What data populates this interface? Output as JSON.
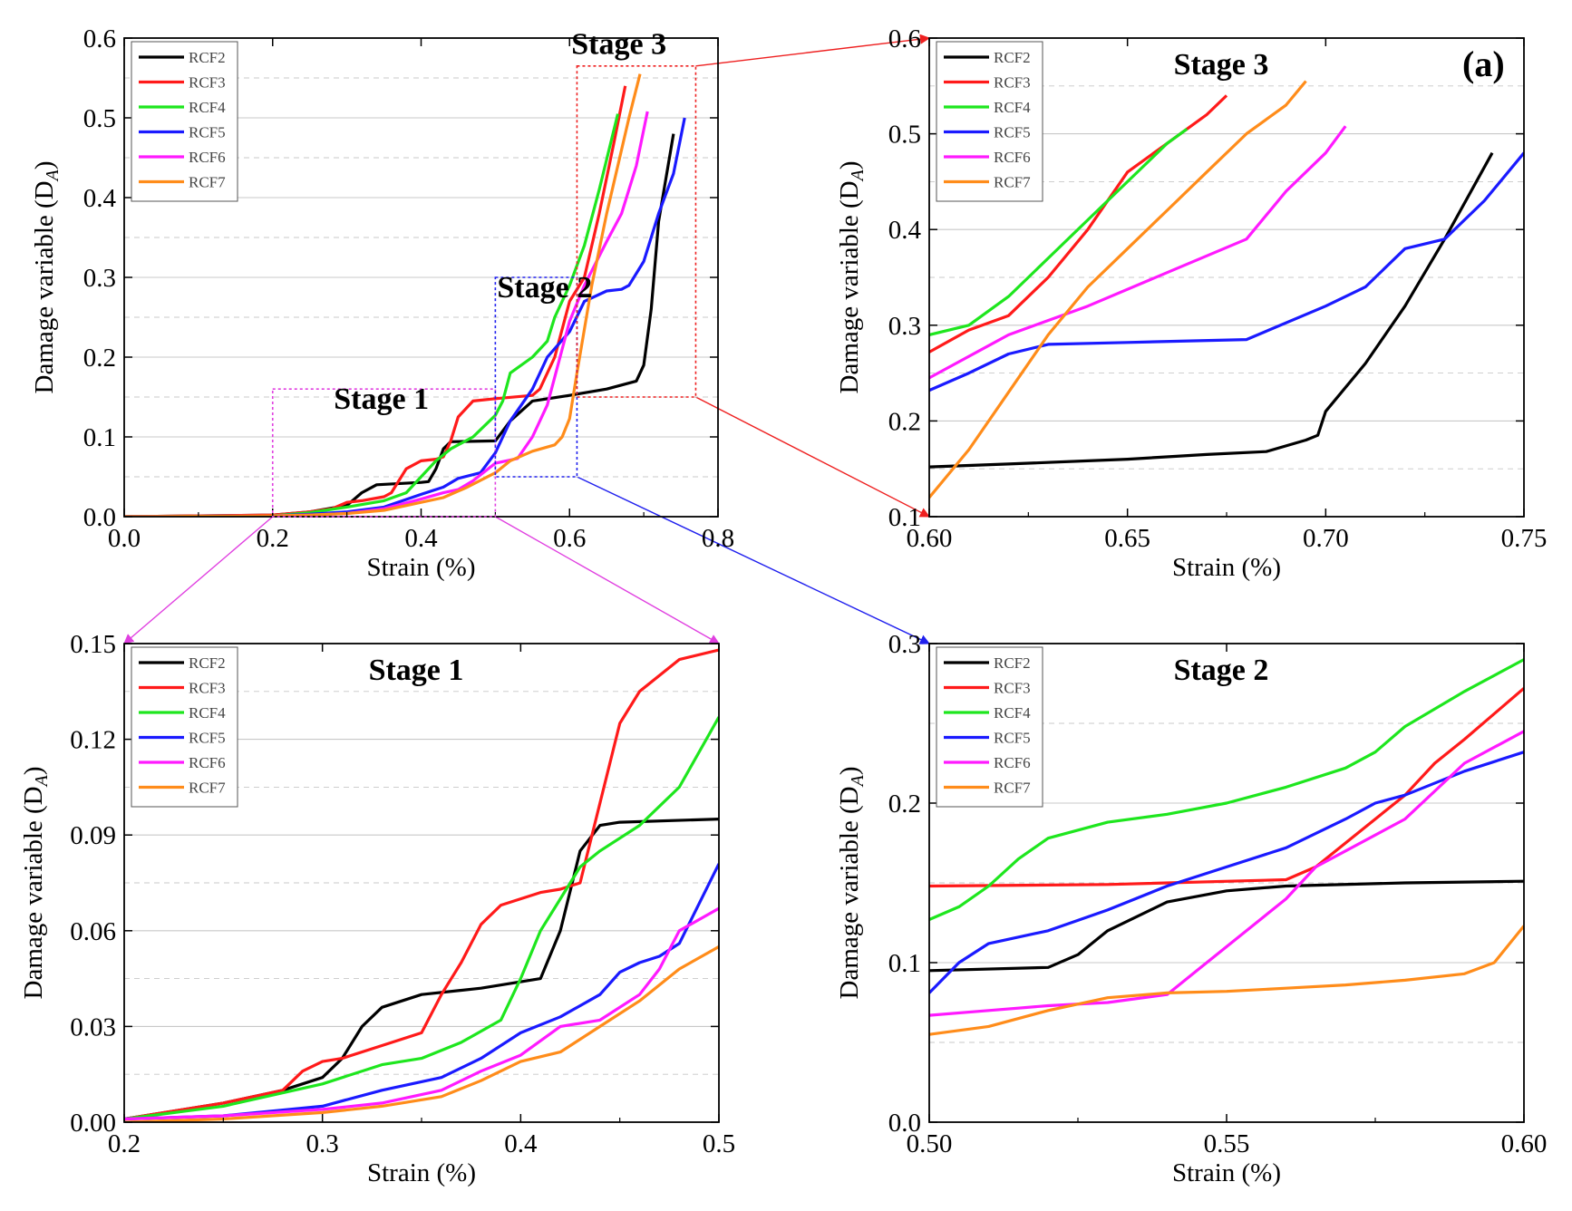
{
  "figure": {
    "panel_tag": "(a)",
    "colors": {
      "RCF2": "#000000",
      "RCF3": "#ff1a1a",
      "RCF4": "#1ee61e",
      "RCF5": "#1a1aff",
      "RCF6": "#ff1aff",
      "RCF7": "#ff8c1a"
    },
    "box_colors": {
      "stage1": "#e040e0",
      "stage2": "#2020ee",
      "stage3": "#ee2020"
    }
  },
  "chart_data": [
    {
      "id": "main",
      "type": "line",
      "title": "",
      "xlabel": "Strain (%)",
      "ylabel": "Damage variable (D",
      "ylabel_sub": "A",
      "ylabel_end": ")",
      "xlim": [
        0,
        0.8
      ],
      "ylim": [
        0,
        0.6
      ],
      "xticks": [
        0.0,
        0.2,
        0.4,
        0.6,
        0.8
      ],
      "xtick_labels": [
        "0.0",
        "0.2",
        "0.4",
        "0.6",
        "0.8"
      ],
      "yticks": [
        0.0,
        0.1,
        0.2,
        0.3,
        0.4,
        0.5,
        0.6
      ],
      "ytick_labels": [
        "0.0",
        "0.1",
        "0.2",
        "0.3",
        "0.4",
        "0.5",
        "0.6"
      ],
      "yminor": [
        0.05,
        0.15,
        0.25,
        0.35,
        0.45,
        0.55
      ],
      "annotations": [
        {
          "text": "Stage 1",
          "x": 0.28,
          "y": 0.135
        },
        {
          "text": "Stage 2",
          "x": 0.5,
          "y": 0.275
        },
        {
          "text": "Stage 3",
          "x": 0.6,
          "y": 0.58
        }
      ],
      "zoom_boxes": [
        {
          "name": "stage1",
          "x": [
            0.2,
            0.5
          ],
          "y": [
            0.0,
            0.16
          ]
        },
        {
          "name": "stage2",
          "x": [
            0.5,
            0.61
          ],
          "y": [
            0.05,
            0.3
          ]
        },
        {
          "name": "stage3",
          "x": [
            0.61,
            0.77
          ],
          "y": [
            0.15,
            0.565
          ]
        }
      ],
      "legend": [
        "RCF2",
        "RCF3",
        "RCF4",
        "RCF5",
        "RCF6",
        "RCF7"
      ],
      "series": [
        {
          "name": "RCF2",
          "x": [
            0,
            0.2,
            0.25,
            0.3,
            0.32,
            0.34,
            0.4,
            0.41,
            0.42,
            0.43,
            0.44,
            0.5,
            0.52,
            0.55,
            0.6,
            0.65,
            0.69,
            0.7,
            0.71,
            0.72,
            0.74
          ],
          "y": [
            0,
            0.002,
            0.006,
            0.014,
            0.03,
            0.04,
            0.043,
            0.044,
            0.06,
            0.085,
            0.094,
            0.095,
            0.12,
            0.145,
            0.152,
            0.16,
            0.17,
            0.19,
            0.26,
            0.37,
            0.48
          ]
        },
        {
          "name": "RCF3",
          "x": [
            0,
            0.2,
            0.25,
            0.28,
            0.3,
            0.32,
            0.35,
            0.36,
            0.38,
            0.4,
            0.42,
            0.43,
            0.44,
            0.45,
            0.47,
            0.5,
            0.55,
            0.56,
            0.58,
            0.6,
            0.62,
            0.64,
            0.66,
            0.675
          ],
          "y": [
            0,
            0.002,
            0.006,
            0.01,
            0.018,
            0.02,
            0.025,
            0.03,
            0.06,
            0.07,
            0.072,
            0.075,
            0.095,
            0.125,
            0.145,
            0.148,
            0.152,
            0.16,
            0.2,
            0.27,
            0.3,
            0.38,
            0.47,
            0.54
          ]
        },
        {
          "name": "RCF4",
          "x": [
            0,
            0.2,
            0.25,
            0.3,
            0.35,
            0.38,
            0.4,
            0.42,
            0.44,
            0.47,
            0.5,
            0.51,
            0.52,
            0.55,
            0.57,
            0.58,
            0.6,
            0.62,
            0.64,
            0.665
          ],
          "y": [
            0,
            0.001,
            0.005,
            0.012,
            0.02,
            0.03,
            0.05,
            0.07,
            0.085,
            0.1,
            0.127,
            0.145,
            0.18,
            0.2,
            0.22,
            0.25,
            0.29,
            0.34,
            0.41,
            0.505
          ]
        },
        {
          "name": "RCF5",
          "x": [
            0,
            0.2,
            0.25,
            0.3,
            0.35,
            0.4,
            0.43,
            0.45,
            0.48,
            0.5,
            0.52,
            0.55,
            0.57,
            0.6,
            0.62,
            0.65,
            0.67,
            0.68,
            0.7,
            0.72,
            0.74,
            0.755
          ],
          "y": [
            0,
            0.001,
            0.003,
            0.006,
            0.012,
            0.028,
            0.037,
            0.048,
            0.055,
            0.08,
            0.12,
            0.16,
            0.2,
            0.232,
            0.27,
            0.283,
            0.285,
            0.29,
            0.32,
            0.38,
            0.43,
            0.5
          ]
        },
        {
          "name": "RCF6",
          "x": [
            0,
            0.2,
            0.25,
            0.3,
            0.35,
            0.4,
            0.43,
            0.45,
            0.47,
            0.5,
            0.53,
            0.55,
            0.57,
            0.6,
            0.62,
            0.65,
            0.67,
            0.69,
            0.705
          ],
          "y": [
            0,
            0.001,
            0.002,
            0.004,
            0.01,
            0.022,
            0.03,
            0.034,
            0.045,
            0.067,
            0.073,
            0.1,
            0.14,
            0.245,
            0.29,
            0.345,
            0.38,
            0.44,
            0.508
          ]
        },
        {
          "name": "RCF7",
          "x": [
            0,
            0.2,
            0.25,
            0.3,
            0.35,
            0.4,
            0.43,
            0.46,
            0.5,
            0.52,
            0.55,
            0.58,
            0.59,
            0.6,
            0.61,
            0.63,
            0.65,
            0.67,
            0.68,
            0.695
          ],
          "y": [
            0,
            0.001,
            0.002,
            0.004,
            0.008,
            0.018,
            0.024,
            0.036,
            0.055,
            0.07,
            0.082,
            0.09,
            0.1,
            0.123,
            0.18,
            0.29,
            0.38,
            0.46,
            0.5,
            0.555
          ]
        }
      ]
    },
    {
      "id": "stage3",
      "type": "line",
      "title": "Stage 3",
      "xlabel": "Strain (%)",
      "ylabel": "Damage variable (D",
      "ylabel_sub": "A",
      "ylabel_end": ")",
      "xlim": [
        0.6,
        0.75
      ],
      "ylim": [
        0.1,
        0.6
      ],
      "xticks": [
        0.6,
        0.65,
        0.7,
        0.75
      ],
      "xtick_labels": [
        "0.60",
        "0.65",
        "0.70",
        "0.75"
      ],
      "yticks": [
        0.1,
        0.2,
        0.3,
        0.4,
        0.5,
        0.6
      ],
      "ytick_labels": [
        "0.1",
        "0.2",
        "0.3",
        "0.4",
        "0.5",
        "0.6"
      ],
      "yminor": [
        0.15,
        0.25,
        0.35,
        0.45,
        0.55
      ],
      "legend": [
        "RCF2",
        "RCF3",
        "RCF4",
        "RCF5",
        "RCF6",
        "RCF7"
      ],
      "series": [
        {
          "name": "RCF2",
          "x": [
            0.6,
            0.62,
            0.65,
            0.67,
            0.685,
            0.695,
            0.698,
            0.7,
            0.71,
            0.72,
            0.73,
            0.742
          ],
          "y": [
            0.152,
            0.155,
            0.16,
            0.165,
            0.168,
            0.18,
            0.185,
            0.21,
            0.26,
            0.32,
            0.39,
            0.48
          ]
        },
        {
          "name": "RCF3",
          "x": [
            0.6,
            0.61,
            0.62,
            0.63,
            0.64,
            0.65,
            0.66,
            0.67,
            0.675
          ],
          "y": [
            0.272,
            0.295,
            0.31,
            0.35,
            0.4,
            0.46,
            0.49,
            0.52,
            0.54
          ]
        },
        {
          "name": "RCF4",
          "x": [
            0.6,
            0.61,
            0.62,
            0.63,
            0.64,
            0.65,
            0.66,
            0.665
          ],
          "y": [
            0.29,
            0.3,
            0.33,
            0.37,
            0.41,
            0.45,
            0.49,
            0.505
          ]
        },
        {
          "name": "RCF5",
          "x": [
            0.6,
            0.61,
            0.62,
            0.63,
            0.65,
            0.68,
            0.7,
            0.71,
            0.72,
            0.73,
            0.74,
            0.75
          ],
          "y": [
            0.232,
            0.25,
            0.27,
            0.28,
            0.282,
            0.285,
            0.32,
            0.34,
            0.38,
            0.39,
            0.43,
            0.48
          ]
        },
        {
          "name": "RCF6",
          "x": [
            0.6,
            0.62,
            0.64,
            0.66,
            0.68,
            0.69,
            0.7,
            0.705
          ],
          "y": [
            0.245,
            0.29,
            0.32,
            0.355,
            0.39,
            0.44,
            0.48,
            0.508
          ]
        },
        {
          "name": "RCF7",
          "x": [
            0.6,
            0.61,
            0.62,
            0.63,
            0.64,
            0.65,
            0.66,
            0.67,
            0.68,
            0.69,
            0.695
          ],
          "y": [
            0.12,
            0.17,
            0.23,
            0.29,
            0.34,
            0.38,
            0.42,
            0.46,
            0.5,
            0.53,
            0.555
          ]
        }
      ]
    },
    {
      "id": "stage1",
      "type": "line",
      "title": "Stage 1",
      "xlabel": "Strain (%)",
      "ylabel": "Damage variable (D",
      "ylabel_sub": "A",
      "ylabel_end": ")",
      "xlim": [
        0.2,
        0.5
      ],
      "ylim": [
        0,
        0.15
      ],
      "xticks": [
        0.2,
        0.3,
        0.4,
        0.5
      ],
      "xtick_labels": [
        "0.2",
        "0.3",
        "0.4",
        "0.5"
      ],
      "yticks": [
        0,
        0.03,
        0.06,
        0.09,
        0.12,
        0.15
      ],
      "ytick_labels": [
        "0.00",
        "0.03",
        "0.06",
        "0.09",
        "0.12",
        "0.15"
      ],
      "yminor": [
        0.015,
        0.045,
        0.075,
        0.105,
        0.135
      ],
      "legend": [
        "RCF2",
        "RCF3",
        "RCF4",
        "RCF5",
        "RCF6",
        "RCF7"
      ],
      "series": [
        {
          "name": "RCF2",
          "x": [
            0.2,
            0.25,
            0.28,
            0.3,
            0.31,
            0.32,
            0.33,
            0.35,
            0.38,
            0.41,
            0.42,
            0.43,
            0.44,
            0.45,
            0.5
          ],
          "y": [
            0.001,
            0.006,
            0.01,
            0.014,
            0.02,
            0.03,
            0.036,
            0.04,
            0.042,
            0.045,
            0.06,
            0.085,
            0.093,
            0.094,
            0.095
          ]
        },
        {
          "name": "RCF3",
          "x": [
            0.2,
            0.25,
            0.28,
            0.29,
            0.3,
            0.31,
            0.33,
            0.35,
            0.36,
            0.37,
            0.38,
            0.39,
            0.41,
            0.42,
            0.43,
            0.44,
            0.45,
            0.46,
            0.48,
            0.5
          ],
          "y": [
            0.001,
            0.006,
            0.01,
            0.016,
            0.019,
            0.02,
            0.024,
            0.028,
            0.04,
            0.05,
            0.062,
            0.068,
            0.072,
            0.073,
            0.075,
            0.1,
            0.125,
            0.135,
            0.145,
            0.148
          ]
        },
        {
          "name": "RCF4",
          "x": [
            0.2,
            0.25,
            0.3,
            0.33,
            0.35,
            0.37,
            0.39,
            0.4,
            0.41,
            0.42,
            0.43,
            0.44,
            0.46,
            0.48,
            0.5
          ],
          "y": [
            0.001,
            0.005,
            0.012,
            0.018,
            0.02,
            0.025,
            0.032,
            0.045,
            0.06,
            0.07,
            0.08,
            0.085,
            0.093,
            0.105,
            0.127
          ]
        },
        {
          "name": "RCF5",
          "x": [
            0.2,
            0.25,
            0.3,
            0.33,
            0.36,
            0.38,
            0.4,
            0.42,
            0.44,
            0.45,
            0.46,
            0.47,
            0.48,
            0.5
          ],
          "y": [
            0.001,
            0.002,
            0.005,
            0.01,
            0.014,
            0.02,
            0.028,
            0.033,
            0.04,
            0.047,
            0.05,
            0.052,
            0.056,
            0.081
          ]
        },
        {
          "name": "RCF6",
          "x": [
            0.2,
            0.25,
            0.3,
            0.33,
            0.36,
            0.38,
            0.4,
            0.42,
            0.44,
            0.46,
            0.47,
            0.48,
            0.5
          ],
          "y": [
            0.001,
            0.002,
            0.004,
            0.006,
            0.01,
            0.016,
            0.021,
            0.03,
            0.032,
            0.04,
            0.048,
            0.06,
            0.067
          ]
        },
        {
          "name": "RCF7",
          "x": [
            0.2,
            0.25,
            0.3,
            0.33,
            0.36,
            0.38,
            0.4,
            0.42,
            0.44,
            0.46,
            0.48,
            0.5
          ],
          "y": [
            0.0,
            0.001,
            0.003,
            0.005,
            0.008,
            0.013,
            0.019,
            0.022,
            0.03,
            0.038,
            0.048,
            0.055
          ]
        }
      ]
    },
    {
      "id": "stage2",
      "type": "line",
      "title": "Stage 2",
      "xlabel": "Strain (%)",
      "ylabel": "Damage variable (D",
      "ylabel_sub": "A",
      "ylabel_end": ")",
      "xlim": [
        0.5,
        0.6
      ],
      "ylim": [
        0,
        0.3
      ],
      "xticks": [
        0.5,
        0.55,
        0.6
      ],
      "xtick_labels": [
        "0.50",
        "0.55",
        "0.60"
      ],
      "yticks": [
        0,
        0.1,
        0.2,
        0.3
      ],
      "ytick_labels": [
        "0.0",
        "0.1",
        "0.2",
        "0.3"
      ],
      "yminor": [
        0.05,
        0.15,
        0.25
      ],
      "legend": [
        "RCF2",
        "RCF3",
        "RCF4",
        "RCF5",
        "RCF6",
        "RCF7"
      ],
      "series": [
        {
          "name": "RCF2",
          "x": [
            0.5,
            0.52,
            0.525,
            0.53,
            0.54,
            0.55,
            0.56,
            0.58,
            0.6
          ],
          "y": [
            0.095,
            0.097,
            0.105,
            0.12,
            0.138,
            0.145,
            0.148,
            0.15,
            0.151
          ]
        },
        {
          "name": "RCF3",
          "x": [
            0.5,
            0.53,
            0.56,
            0.565,
            0.57,
            0.575,
            0.58,
            0.585,
            0.59,
            0.6
          ],
          "y": [
            0.148,
            0.149,
            0.152,
            0.16,
            0.175,
            0.19,
            0.205,
            0.225,
            0.24,
            0.272
          ]
        },
        {
          "name": "RCF4",
          "x": [
            0.5,
            0.505,
            0.51,
            0.515,
            0.52,
            0.53,
            0.54,
            0.55,
            0.56,
            0.57,
            0.575,
            0.58,
            0.59,
            0.6
          ],
          "y": [
            0.127,
            0.135,
            0.148,
            0.165,
            0.178,
            0.188,
            0.193,
            0.2,
            0.21,
            0.222,
            0.232,
            0.248,
            0.27,
            0.29
          ]
        },
        {
          "name": "RCF5",
          "x": [
            0.5,
            0.505,
            0.51,
            0.52,
            0.53,
            0.54,
            0.55,
            0.56,
            0.57,
            0.575,
            0.58,
            0.59,
            0.6
          ],
          "y": [
            0.081,
            0.1,
            0.112,
            0.12,
            0.133,
            0.148,
            0.16,
            0.172,
            0.19,
            0.2,
            0.205,
            0.22,
            0.232
          ]
        },
        {
          "name": "RCF6",
          "x": [
            0.5,
            0.51,
            0.52,
            0.53,
            0.54,
            0.545,
            0.55,
            0.56,
            0.565,
            0.57,
            0.58,
            0.59,
            0.6
          ],
          "y": [
            0.067,
            0.07,
            0.073,
            0.075,
            0.08,
            0.095,
            0.11,
            0.14,
            0.16,
            0.17,
            0.19,
            0.225,
            0.245
          ]
        },
        {
          "name": "RCF7",
          "x": [
            0.5,
            0.51,
            0.52,
            0.53,
            0.54,
            0.55,
            0.56,
            0.57,
            0.58,
            0.59,
            0.595,
            0.6
          ],
          "y": [
            0.055,
            0.06,
            0.07,
            0.078,
            0.081,
            0.082,
            0.084,
            0.086,
            0.089,
            0.093,
            0.1,
            0.123
          ]
        }
      ]
    }
  ]
}
